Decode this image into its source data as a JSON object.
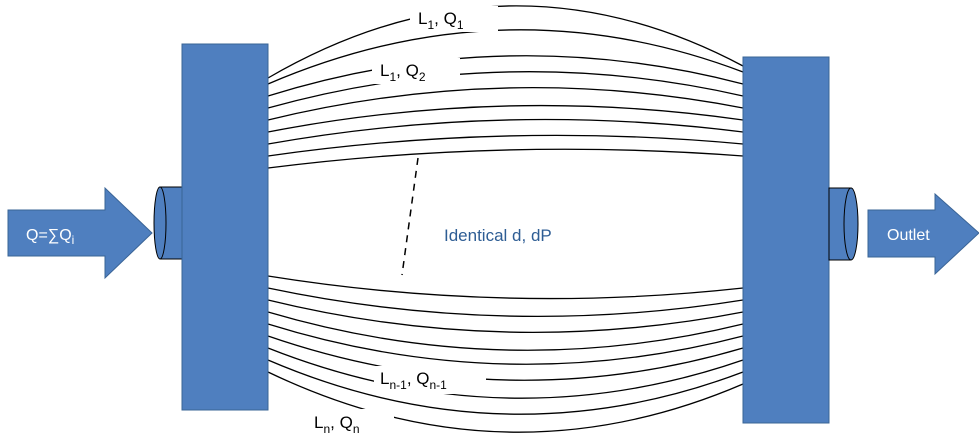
{
  "inlet": {
    "label": "Q=∑Q",
    "subscript": "i"
  },
  "outlet": {
    "label": "Outlet"
  },
  "note": {
    "text": "Identical d, dP"
  },
  "tube_labels": [
    {
      "name": "tube-label-1",
      "main1": "L",
      "sub1": "1",
      "main2": ", Q",
      "sub2": "1"
    },
    {
      "name": "tube-label-2",
      "main1": "L",
      "sub1": "1",
      "main2": ", Q",
      "sub2": "2"
    },
    {
      "name": "tube-label-n-1",
      "main1": "L",
      "sub1": "n-1",
      "main2": ", Q",
      "sub2": "n-1"
    },
    {
      "name": "tube-label-n",
      "main1": "L",
      "sub1": "n",
      "main2": ", Q",
      "sub2": "n"
    }
  ],
  "colors": {
    "manifold": "#4f7fbf",
    "manifold_stroke": "#3a6496",
    "note": "#2e5d94",
    "tube": "#000000"
  }
}
